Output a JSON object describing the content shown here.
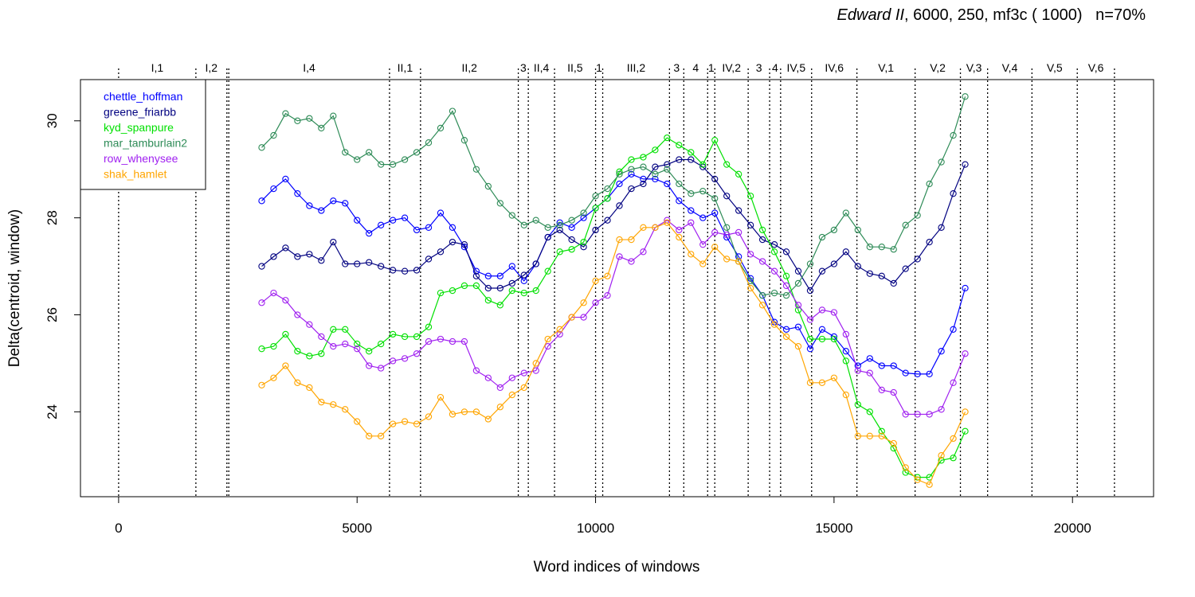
{
  "chart_data": {
    "type": "line",
    "title": {
      "play": "Edward II",
      "params": ", 6000, 250, mf3c ( 1000)",
      "pct": "n=70%"
    },
    "xlabel": "Word indices of windows",
    "ylabel": "Delta(centroid, window)",
    "xlim": [
      -800,
      21700
    ],
    "ylim": [
      22.25,
      30.85
    ],
    "xticks": [
      0,
      5000,
      10000,
      15000,
      20000
    ],
    "xtick_labels": [
      "0",
      "5000",
      "10000",
      "15000",
      "20000"
    ],
    "yticks": [
      24,
      26,
      28,
      30
    ],
    "ytick_labels": [
      "24",
      "26",
      "28",
      "30"
    ],
    "grid": false,
    "legend_position": "top-left",
    "x": [
      3000,
      3250,
      3500,
      3750,
      4000,
      4250,
      4500,
      4750,
      5000,
      5250,
      5500,
      5750,
      6000,
      6250,
      6500,
      6750,
      7000,
      7250,
      7500,
      7750,
      8000,
      8250,
      8500,
      8750,
      9000,
      9250,
      9500,
      9750,
      10000,
      10250,
      10500,
      10750,
      11000,
      11250,
      11500,
      11750,
      12000,
      12250,
      12500,
      12750,
      13000,
      13250,
      13500,
      13750,
      14000,
      14250,
      14500,
      14750,
      15000,
      15250,
      15500,
      15750,
      16000,
      16250,
      16500,
      16750,
      17000,
      17250,
      17500,
      17750
    ],
    "series": [
      {
        "name": "chettle_hoffman",
        "color": "#0000ff",
        "values": [
          28.35,
          28.6,
          28.8,
          28.5,
          28.25,
          28.15,
          28.35,
          28.3,
          27.95,
          27.68,
          27.85,
          27.95,
          28.0,
          27.75,
          27.8,
          28.1,
          27.8,
          27.4,
          26.9,
          26.8,
          26.8,
          27.0,
          26.7,
          27.05,
          27.6,
          27.9,
          27.8,
          28.0,
          28.2,
          28.4,
          28.7,
          28.9,
          28.8,
          28.8,
          28.7,
          28.35,
          28.15,
          28.0,
          28.1,
          27.6,
          27.2,
          26.75,
          26.4,
          25.85,
          25.7,
          25.75,
          25.3,
          25.7,
          25.55,
          25.25,
          24.95,
          25.1,
          24.95,
          24.95,
          24.8,
          24.78,
          24.78,
          25.25,
          25.7,
          26.55
        ]
      },
      {
        "name": "greene_friarbb",
        "color": "#000080",
        "values": [
          27.0,
          27.2,
          27.38,
          27.2,
          27.25,
          27.12,
          27.5,
          27.05,
          27.05,
          27.08,
          27.0,
          26.92,
          26.9,
          26.92,
          27.15,
          27.3,
          27.5,
          27.45,
          26.8,
          26.55,
          26.55,
          26.65,
          26.82,
          27.05,
          27.6,
          27.75,
          27.55,
          27.4,
          27.75,
          27.95,
          28.25,
          28.6,
          28.7,
          29.05,
          29.1,
          29.2,
          29.2,
          29.05,
          28.8,
          28.45,
          28.15,
          27.85,
          27.55,
          27.45,
          27.3,
          26.9,
          26.5,
          26.9,
          27.05,
          27.3,
          27.0,
          26.85,
          26.8,
          26.65,
          26.95,
          27.15,
          27.5,
          27.8,
          28.5,
          29.1
        ]
      },
      {
        "name": "kyd_spanpure",
        "color": "#00e000",
        "values": [
          25.3,
          25.35,
          25.6,
          25.25,
          25.15,
          25.2,
          25.7,
          25.7,
          25.4,
          25.25,
          25.4,
          25.6,
          25.55,
          25.55,
          25.75,
          26.45,
          26.5,
          26.6,
          26.6,
          26.3,
          26.2,
          26.5,
          26.45,
          26.5,
          26.9,
          27.3,
          27.35,
          27.5,
          28.2,
          28.4,
          28.95,
          29.2,
          29.25,
          29.4,
          29.65,
          29.5,
          29.35,
          29.1,
          29.6,
          29.1,
          28.9,
          28.45,
          27.75,
          27.3,
          26.8,
          26.1,
          25.5,
          25.5,
          25.5,
          25.05,
          24.15,
          24.0,
          23.6,
          23.25,
          22.75,
          22.65,
          22.65,
          23.0,
          23.05,
          23.6
        ]
      },
      {
        "name": "mar_tamburlain2",
        "color": "#2e8b57",
        "values": [
          29.45,
          29.7,
          30.15,
          30.0,
          30.05,
          29.85,
          30.1,
          29.35,
          29.2,
          29.35,
          29.1,
          29.1,
          29.2,
          29.35,
          29.55,
          29.85,
          30.2,
          29.6,
          29.0,
          28.65,
          28.3,
          28.05,
          27.85,
          27.95,
          27.8,
          27.85,
          27.95,
          28.1,
          28.45,
          28.6,
          28.9,
          29.0,
          29.05,
          28.9,
          29.0,
          28.7,
          28.5,
          28.55,
          28.4,
          27.8,
          27.1,
          26.7,
          26.4,
          26.45,
          26.4,
          26.65,
          27.05,
          27.6,
          27.75,
          28.1,
          27.75,
          27.4,
          27.4,
          27.35,
          27.85,
          28.05,
          28.7,
          29.15,
          29.7,
          30.5
        ]
      },
      {
        "name": "row_whenysee",
        "color": "#a020f0",
        "values": [
          26.25,
          26.45,
          26.3,
          26.0,
          25.8,
          25.55,
          25.35,
          25.4,
          25.3,
          24.95,
          24.9,
          25.05,
          25.1,
          25.2,
          25.45,
          25.5,
          25.45,
          25.45,
          24.85,
          24.7,
          24.5,
          24.7,
          24.8,
          24.85,
          25.35,
          25.6,
          25.95,
          25.95,
          26.25,
          26.4,
          27.2,
          27.1,
          27.3,
          27.8,
          27.95,
          27.75,
          27.9,
          27.45,
          27.7,
          27.65,
          27.7,
          27.25,
          27.1,
          26.9,
          26.6,
          26.2,
          25.9,
          26.1,
          26.05,
          25.6,
          24.85,
          24.8,
          24.45,
          24.4,
          23.95,
          23.95,
          23.95,
          24.05,
          24.6,
          25.2
        ]
      },
      {
        "name": "shak_hamlet",
        "color": "#ffa500",
        "values": [
          24.55,
          24.7,
          24.95,
          24.6,
          24.5,
          24.2,
          24.15,
          24.05,
          23.8,
          23.5,
          23.5,
          23.75,
          23.8,
          23.75,
          23.9,
          24.3,
          23.95,
          24.0,
          24.0,
          23.85,
          24.1,
          24.35,
          24.5,
          25.0,
          25.5,
          25.7,
          25.95,
          26.25,
          26.7,
          26.8,
          27.55,
          27.55,
          27.8,
          27.8,
          27.9,
          27.6,
          27.25,
          27.05,
          27.4,
          27.15,
          27.1,
          26.55,
          26.2,
          25.8,
          25.55,
          25.35,
          24.6,
          24.6,
          24.7,
          24.35,
          23.5,
          23.5,
          23.5,
          23.35,
          22.85,
          22.6,
          22.5,
          23.1,
          23.45,
          24.0
        ]
      }
    ],
    "scenes": [
      {
        "label": "I,1",
        "x": 0
      },
      {
        "label": "I,2",
        "x": 1620
      },
      {
        "label": "",
        "x": 2270
      },
      {
        "label": "I,4",
        "x": 2310
      },
      {
        "label": "II,1",
        "x": 5680
      },
      {
        "label": "II,2",
        "x": 6330
      },
      {
        "label": "3",
        "x": 8380
      },
      {
        "label": "II,4",
        "x": 8590
      },
      {
        "label": "II,5",
        "x": 9140
      },
      {
        "label": "1",
        "x": 10000
      },
      {
        "label": "III,2",
        "x": 10150
      },
      {
        "label": "3",
        "x": 11550
      },
      {
        "label": "4",
        "x": 11850
      },
      {
        "label": "1",
        "x": 12350
      },
      {
        "label": "IV,2",
        "x": 12500
      },
      {
        "label": "3",
        "x": 13200
      },
      {
        "label": "4",
        "x": 13650
      },
      {
        "label": "IV,5",
        "x": 13880
      },
      {
        "label": "IV,6",
        "x": 14530
      },
      {
        "label": "V,1",
        "x": 15480
      },
      {
        "label": "V,2",
        "x": 16700
      },
      {
        "label": "V,3",
        "x": 17650
      },
      {
        "label": "V,4",
        "x": 18220
      },
      {
        "label": "V,5",
        "x": 19150
      },
      {
        "label": "V,6",
        "x": 20100
      },
      {
        "label": "",
        "x": 20880
      }
    ]
  }
}
